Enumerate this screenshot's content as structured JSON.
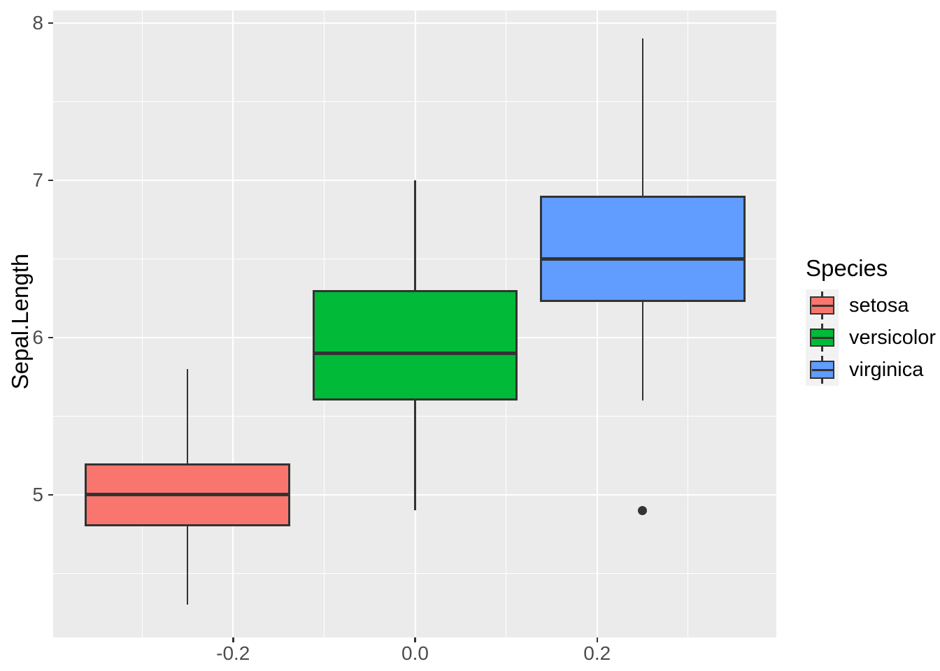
{
  "chart_data": {
    "type": "boxplot",
    "title": "",
    "xlabel": "",
    "ylabel": "Sepal.Length",
    "legend_title": "Species",
    "legend_position": "right",
    "grid": true,
    "x_ticks": [
      -0.2,
      0.0,
      0.2
    ],
    "x_tick_labels": [
      "-0.2",
      "0.0",
      "0.2"
    ],
    "y_ticks": [
      5,
      6,
      7,
      8
    ],
    "y_tick_labels": [
      "5",
      "6",
      "7",
      "8"
    ],
    "x_minor_gridlines": [
      -0.3,
      -0.1,
      0.1,
      0.3
    ],
    "y_minor_gridlines": [
      4.5,
      5.5,
      6.5,
      7.5
    ],
    "xlim": [
      -0.3977,
      0.3969
    ],
    "ylim": [
      4.0933,
      8.08
    ],
    "box_width": 0.2255,
    "series": [
      {
        "name": "setosa",
        "fill": "#F8766D",
        "x": -0.25,
        "whisker_low": 4.3,
        "q1": 4.8,
        "median": 5.0,
        "q3": 5.2,
        "whisker_high": 5.8,
        "outliers": []
      },
      {
        "name": "versicolor",
        "fill": "#00BA38",
        "x": 0.0,
        "whisker_low": 4.9,
        "q1": 5.6,
        "median": 5.9,
        "q3": 6.3,
        "whisker_high": 7.0,
        "outliers": []
      },
      {
        "name": "virginica",
        "fill": "#619CFF",
        "x": 0.25,
        "whisker_low": 5.6,
        "q1": 6.225,
        "median": 6.5,
        "q3": 6.9,
        "whisker_high": 7.9,
        "outliers": [
          4.9
        ]
      }
    ],
    "colors": {
      "panel_background": "#EBEBEB",
      "gridline": "#FFFFFF",
      "box_border": "#333333",
      "tick_mark": "#333333",
      "tick_label": "#4D4D4D",
      "axis_title": "#000000",
      "legend_key_background": "#F2F2F2",
      "outlier": "#333333",
      "figure_background": "#FFFFFF"
    }
  }
}
